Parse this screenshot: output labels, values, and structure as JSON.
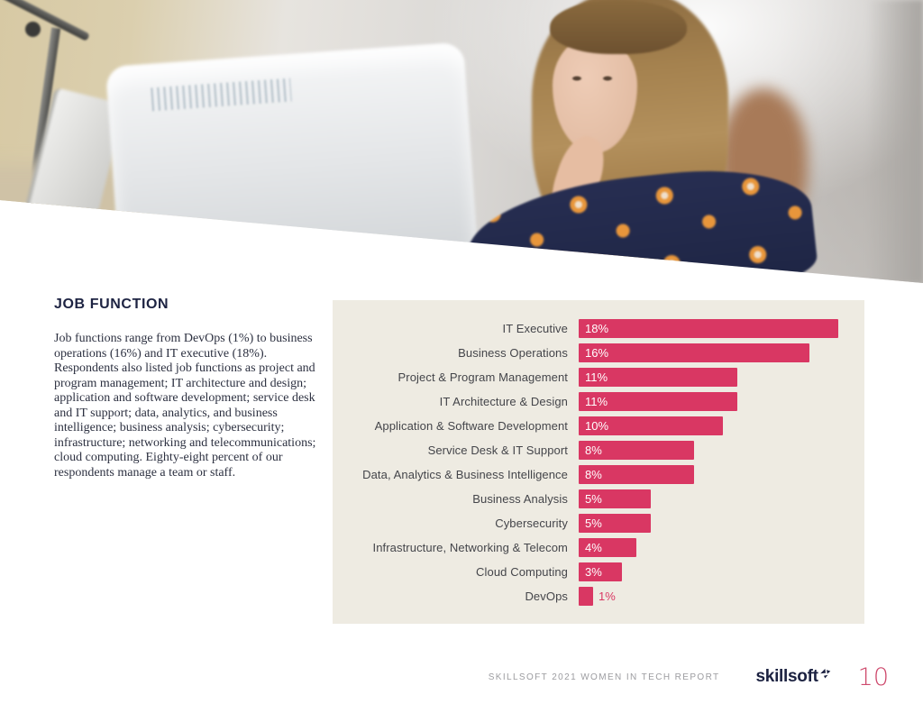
{
  "hero": {
    "description": "Photo: woman with bangs resting her chin on her hand, looking at a computer monitor in a bright office; blurred colleague in background"
  },
  "article": {
    "heading": "JOB FUNCTION",
    "body": "Job functions range from DevOps (1%) to business operations (16%) and IT executive (18%). Respondents also listed job functions as project and program management; IT architecture and design; application and software development; service desk and IT support; data, analytics, and business intelligence; business analysis; cybersecurity; infrastructure; networking and telecommunications; cloud computing. Eighty-eight percent of our respondents manage a team or staff."
  },
  "chart_data": {
    "type": "bar",
    "orientation": "horizontal",
    "title": "",
    "categories": [
      "IT Executive",
      "Business Operations",
      "Project & Program Management",
      "IT Architecture & Design",
      "Application & Software Development",
      "Service Desk & IT Support",
      "Data, Analytics & Business Intelligence",
      "Business Analysis",
      "Cybersecurity",
      "Infrastructure, Networking & Telecom",
      "Cloud Computing",
      "DevOps"
    ],
    "values": [
      18,
      16,
      11,
      11,
      10,
      8,
      8,
      5,
      5,
      4,
      3,
      1
    ],
    "value_labels": [
      "18%",
      "16%",
      "11%",
      "11%",
      "10%",
      "8%",
      "8%",
      "5%",
      "5%",
      "4%",
      "3%",
      "1%"
    ],
    "value_suffix": "%",
    "xlim": [
      0,
      20
    ],
    "grid": false,
    "legend": false,
    "bar_color": "#d93763",
    "panel_background": "#eeebe2",
    "value_label_position": "inside-start, outside for smallest bar"
  },
  "footer": {
    "report_title": "SKILLSOFT 2021 WOMEN IN TECH REPORT",
    "logo_text": "skillsoft",
    "page_number": "10"
  },
  "colors": {
    "accent_pink": "#d93763",
    "page_number_pink": "#ce4a6d",
    "navy": "#1d2342",
    "body_text": "#2c3040",
    "panel_beige": "#eeebe2",
    "footer_gray": "#9c9ca0"
  }
}
